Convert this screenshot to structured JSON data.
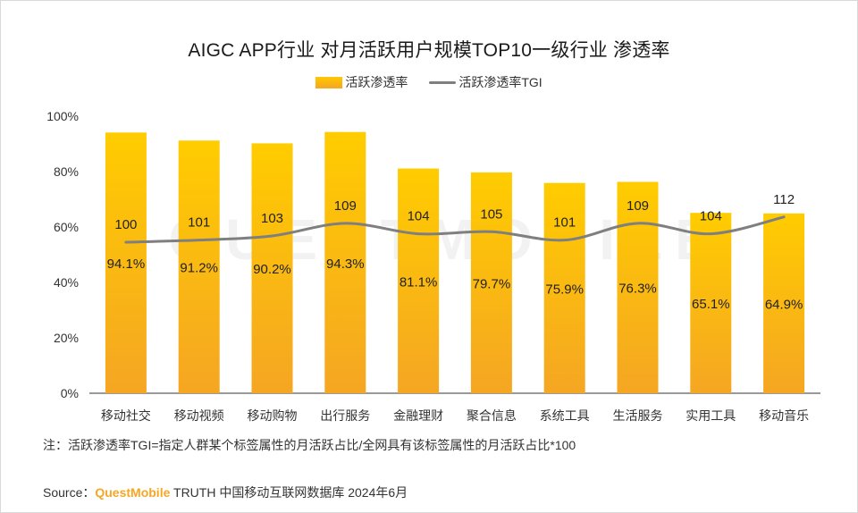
{
  "chart_data": {
    "type": "bar",
    "title": "AIGC APP行业 对月活跃用户规模TOP10一级行业 渗透率",
    "categories": [
      "移动社交",
      "移动视频",
      "移动购物",
      "出行服务",
      "金融理财",
      "聚合信息",
      "系统工具",
      "生活服务",
      "实用工具",
      "移动音乐"
    ],
    "series": [
      {
        "name": "活跃渗透率",
        "type": "bar",
        "values": [
          94.1,
          91.2,
          90.2,
          94.3,
          81.1,
          79.7,
          75.9,
          76.3,
          65.1,
          64.9
        ],
        "labels": [
          "94.1%",
          "91.2%",
          "90.2%",
          "94.3%",
          "81.1%",
          "79.7%",
          "75.9%",
          "76.3%",
          "65.1%",
          "64.9%"
        ],
        "color": "#ffc700"
      },
      {
        "name": "活跃渗透率TGI",
        "type": "line",
        "values": [
          100,
          101,
          103,
          109,
          104,
          105,
          101,
          109,
          104,
          112
        ],
        "labels": [
          "100",
          "101",
          "103",
          "109",
          "104",
          "105",
          "101",
          "109",
          "104",
          "112"
        ],
        "color": "#7f7f7f"
      }
    ],
    "y_axis": {
      "min": 0,
      "max": 100,
      "ticks": [
        0,
        20,
        40,
        60,
        80,
        100
      ],
      "tick_labels": [
        "0%",
        "20%",
        "40%",
        "60%",
        "80%",
        "100%"
      ]
    },
    "legend_position": "top-center",
    "grid": false
  },
  "note": "注：活跃渗透率TGI=指定人群某个标签属性的月活跃占比/全网具有该标签属性的月活跃占比*100",
  "source": {
    "prefix": "Source：",
    "brand": "QuestMobile",
    "suffix": " TRUTH 中国移动互联网数据库 2024年6月"
  },
  "watermark": "QUESTMOBILE"
}
